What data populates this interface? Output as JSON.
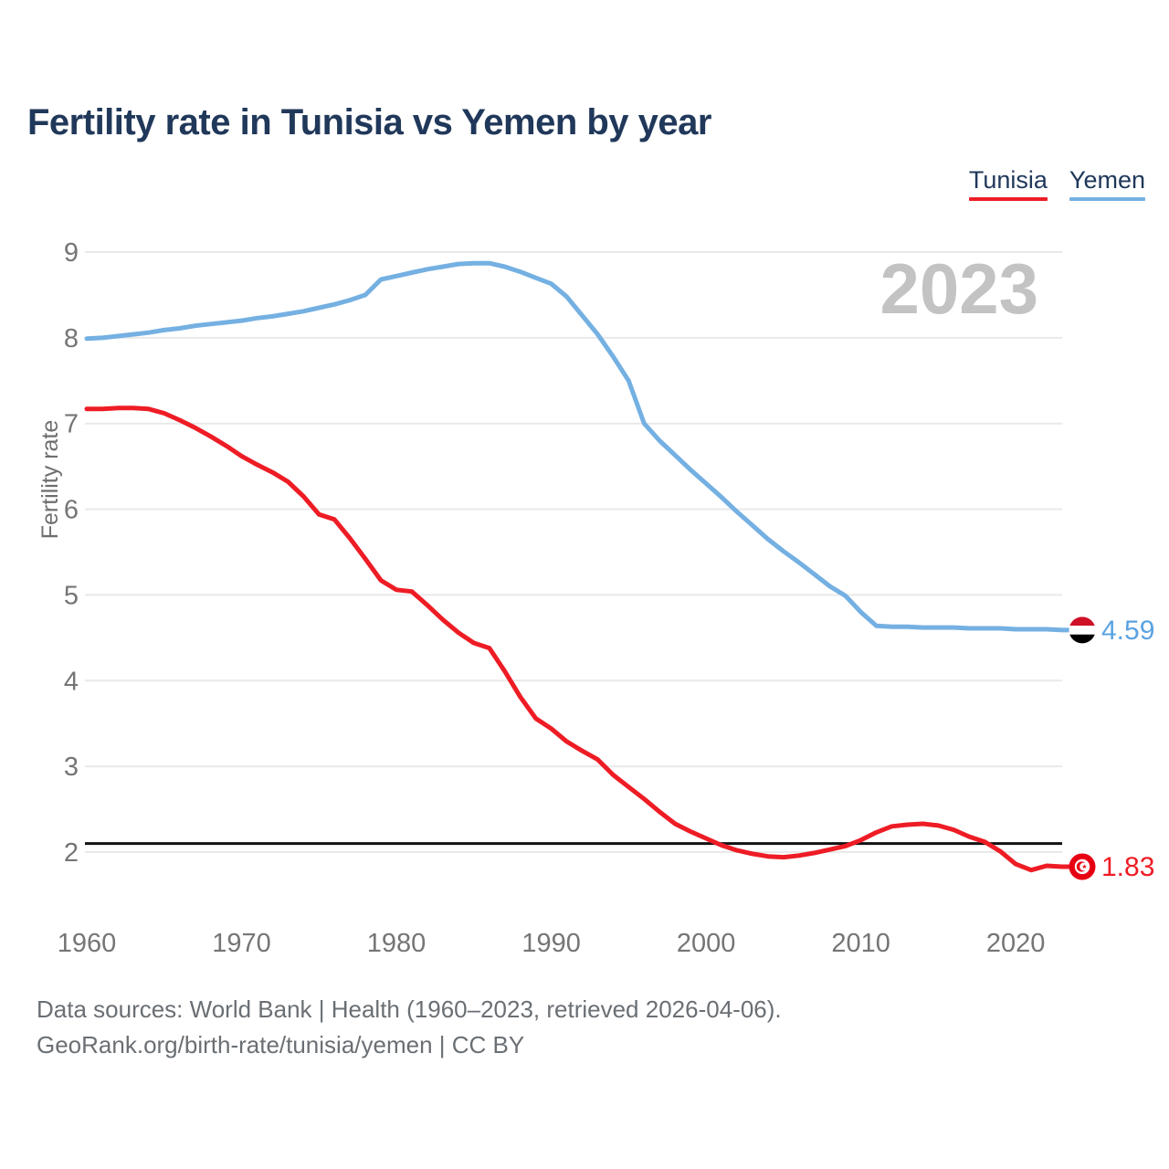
{
  "title": "Fertility rate in Tunisia vs Yemen by year",
  "legend": [
    {
      "label": "Tunisia",
      "color": "#ee1c25"
    },
    {
      "label": "Yemen",
      "color": "#74b0e2"
    }
  ],
  "watermark": "2023",
  "footer": {
    "line1": "Data sources: World Bank | Health (1960–2023, retrieved 2026-04-06).",
    "line2": "GeoRank.org/birth-rate/tunisia/yemen | CC BY"
  },
  "colors": {
    "tunisia_red": "#ee1c25",
    "yemen_blue": "#74b0e2",
    "yemen_value_blue": "#5aa3e2",
    "title_navy": "#20385a",
    "tick_gray": "#757575",
    "axis_label_gray": "#6e6e6e",
    "grid_gray": "#e9e9e9",
    "watermark_gray": "#c3c3c3",
    "reference_black": "#111111",
    "footer_gray": "#6a6f74",
    "yemen_flag_red": "#ce1126",
    "yemen_flag_black": "#000000",
    "tunisia_flag_red": "#e70013"
  },
  "chart_data": {
    "type": "line",
    "title": "Fertility rate in Tunisia vs Yemen by year",
    "xlabel": "",
    "ylabel": "Fertility rate",
    "grid": "horizontal",
    "legend_position": "top-right",
    "watermark": "2023",
    "x_ticks": [
      1960,
      1970,
      1980,
      1990,
      2000,
      2010,
      2020
    ],
    "y_ticks": [
      9,
      8,
      7,
      6,
      5,
      4,
      3,
      2
    ],
    "xlim": [
      1960,
      2023
    ],
    "ylim": [
      1.7,
      9.1
    ],
    "reference_line": {
      "value": 2.1,
      "label": ""
    },
    "x": [
      1960,
      1961,
      1962,
      1963,
      1964,
      1965,
      1966,
      1967,
      1968,
      1969,
      1970,
      1971,
      1972,
      1973,
      1974,
      1975,
      1976,
      1977,
      1978,
      1979,
      1980,
      1981,
      1982,
      1983,
      1984,
      1985,
      1986,
      1987,
      1988,
      1989,
      1990,
      1991,
      1992,
      1993,
      1994,
      1995,
      1996,
      1997,
      1998,
      1999,
      2000,
      2001,
      2002,
      2003,
      2004,
      2005,
      2006,
      2007,
      2008,
      2009,
      2010,
      2011,
      2012,
      2013,
      2014,
      2015,
      2016,
      2017,
      2018,
      2019,
      2020,
      2021,
      2022,
      2023
    ],
    "series": [
      {
        "name": "Tunisia",
        "color": "#ee1c25",
        "end_label": "1.83",
        "end_value": 1.83,
        "values": [
          7.17,
          7.17,
          7.18,
          7.18,
          7.17,
          7.12,
          7.04,
          6.95,
          6.85,
          6.74,
          6.62,
          6.52,
          6.43,
          6.32,
          6.15,
          5.94,
          5.88,
          5.66,
          5.42,
          5.17,
          5.06,
          5.04,
          4.88,
          4.71,
          4.56,
          4.44,
          4.38,
          4.11,
          3.81,
          3.56,
          3.44,
          3.29,
          3.18,
          3.08,
          2.9,
          2.76,
          2.62,
          2.47,
          2.33,
          2.24,
          2.16,
          2.08,
          2.02,
          1.98,
          1.95,
          1.94,
          1.96,
          1.99,
          2.03,
          2.07,
          2.14,
          2.23,
          2.3,
          2.32,
          2.33,
          2.31,
          2.26,
          2.18,
          2.12,
          2.01,
          1.86,
          1.79,
          1.84,
          1.83
        ]
      },
      {
        "name": "Yemen",
        "color": "#74b0e2",
        "end_label": "4.59",
        "end_value": 4.59,
        "values": [
          7.99,
          8.0,
          8.02,
          8.04,
          8.06,
          8.09,
          8.11,
          8.14,
          8.16,
          8.18,
          8.2,
          8.23,
          8.25,
          8.28,
          8.31,
          8.35,
          8.39,
          8.44,
          8.5,
          8.68,
          8.72,
          8.76,
          8.8,
          8.83,
          8.86,
          8.87,
          8.87,
          8.83,
          8.77,
          8.7,
          8.63,
          8.48,
          8.26,
          8.04,
          7.78,
          7.5,
          7.0,
          6.8,
          6.63,
          6.46,
          6.3,
          6.14,
          5.97,
          5.81,
          5.65,
          5.51,
          5.38,
          5.24,
          5.1,
          4.99,
          4.8,
          4.64,
          4.63,
          4.63,
          4.62,
          4.62,
          4.62,
          4.61,
          4.61,
          4.61,
          4.6,
          4.6,
          4.6,
          4.59
        ]
      }
    ]
  }
}
